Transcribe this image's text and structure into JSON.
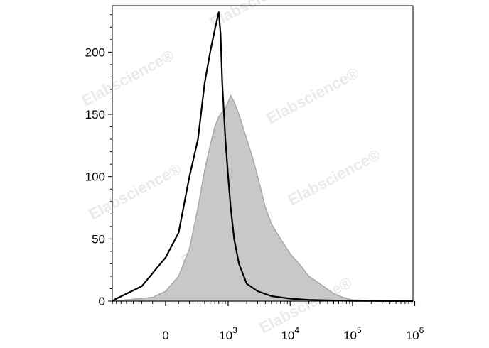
{
  "watermark_text": "Elabscience",
  "watermark_mark": "®",
  "chart_data": {
    "type": "area",
    "x_scale": "biexponential",
    "xlim": [
      -1000,
      1000000
    ],
    "ylim": [
      0,
      235
    ],
    "x_ticks": [
      {
        "value": 0,
        "base": "0",
        "exp": ""
      },
      {
        "value": 1000,
        "base": "10",
        "exp": "3"
      },
      {
        "value": 10000,
        "base": "10",
        "exp": "4"
      },
      {
        "value": 100000,
        "base": "10",
        "exp": "5"
      },
      {
        "value": 1000000,
        "base": "10",
        "exp": "6"
      }
    ],
    "y_ticks": [
      0,
      50,
      100,
      150,
      200
    ],
    "grid": false,
    "series": [
      {
        "style": "filled",
        "color": "#c8c8c8",
        "edge_color": "#a8a8a8",
        "points": [
          [
            -800,
            0
          ],
          [
            -400,
            1
          ],
          [
            -100,
            3
          ],
          [
            0,
            8
          ],
          [
            100,
            20
          ],
          [
            200,
            42
          ],
          [
            300,
            75
          ],
          [
            400,
            105
          ],
          [
            500,
            125
          ],
          [
            600,
            140
          ],
          [
            700,
            148
          ],
          [
            800,
            152
          ],
          [
            900,
            155
          ],
          [
            1000,
            160
          ],
          [
            1100,
            165
          ],
          [
            1250,
            160
          ],
          [
            1500,
            150
          ],
          [
            2000,
            130
          ],
          [
            2500,
            115
          ],
          [
            3000,
            100
          ],
          [
            4000,
            75
          ],
          [
            5000,
            62
          ],
          [
            7000,
            50
          ],
          [
            10000,
            38
          ],
          [
            15000,
            28
          ],
          [
            20000,
            20
          ],
          [
            30000,
            14
          ],
          [
            50000,
            6
          ],
          [
            70000,
            3
          ],
          [
            100000,
            1
          ],
          [
            200000,
            0.5
          ],
          [
            1000000,
            0
          ]
        ]
      },
      {
        "style": "line",
        "color": "#000000",
        "points": [
          [
            -900,
            0
          ],
          [
            -600,
            2
          ],
          [
            -400,
            6
          ],
          [
            -200,
            12
          ],
          [
            0,
            35
          ],
          [
            100,
            55
          ],
          [
            200,
            100
          ],
          [
            300,
            130
          ],
          [
            400,
            175
          ],
          [
            500,
            200
          ],
          [
            600,
            218
          ],
          [
            700,
            232
          ],
          [
            750,
            215
          ],
          [
            800,
            175
          ],
          [
            900,
            130
          ],
          [
            1000,
            100
          ],
          [
            1100,
            75
          ],
          [
            1250,
            50
          ],
          [
            1500,
            30
          ],
          [
            2000,
            14
          ],
          [
            3000,
            8
          ],
          [
            5000,
            4
          ],
          [
            10000,
            2
          ],
          [
            20000,
            1
          ],
          [
            50000,
            0.5
          ],
          [
            100000,
            0.2
          ],
          [
            1000000,
            0
          ]
        ]
      }
    ]
  }
}
